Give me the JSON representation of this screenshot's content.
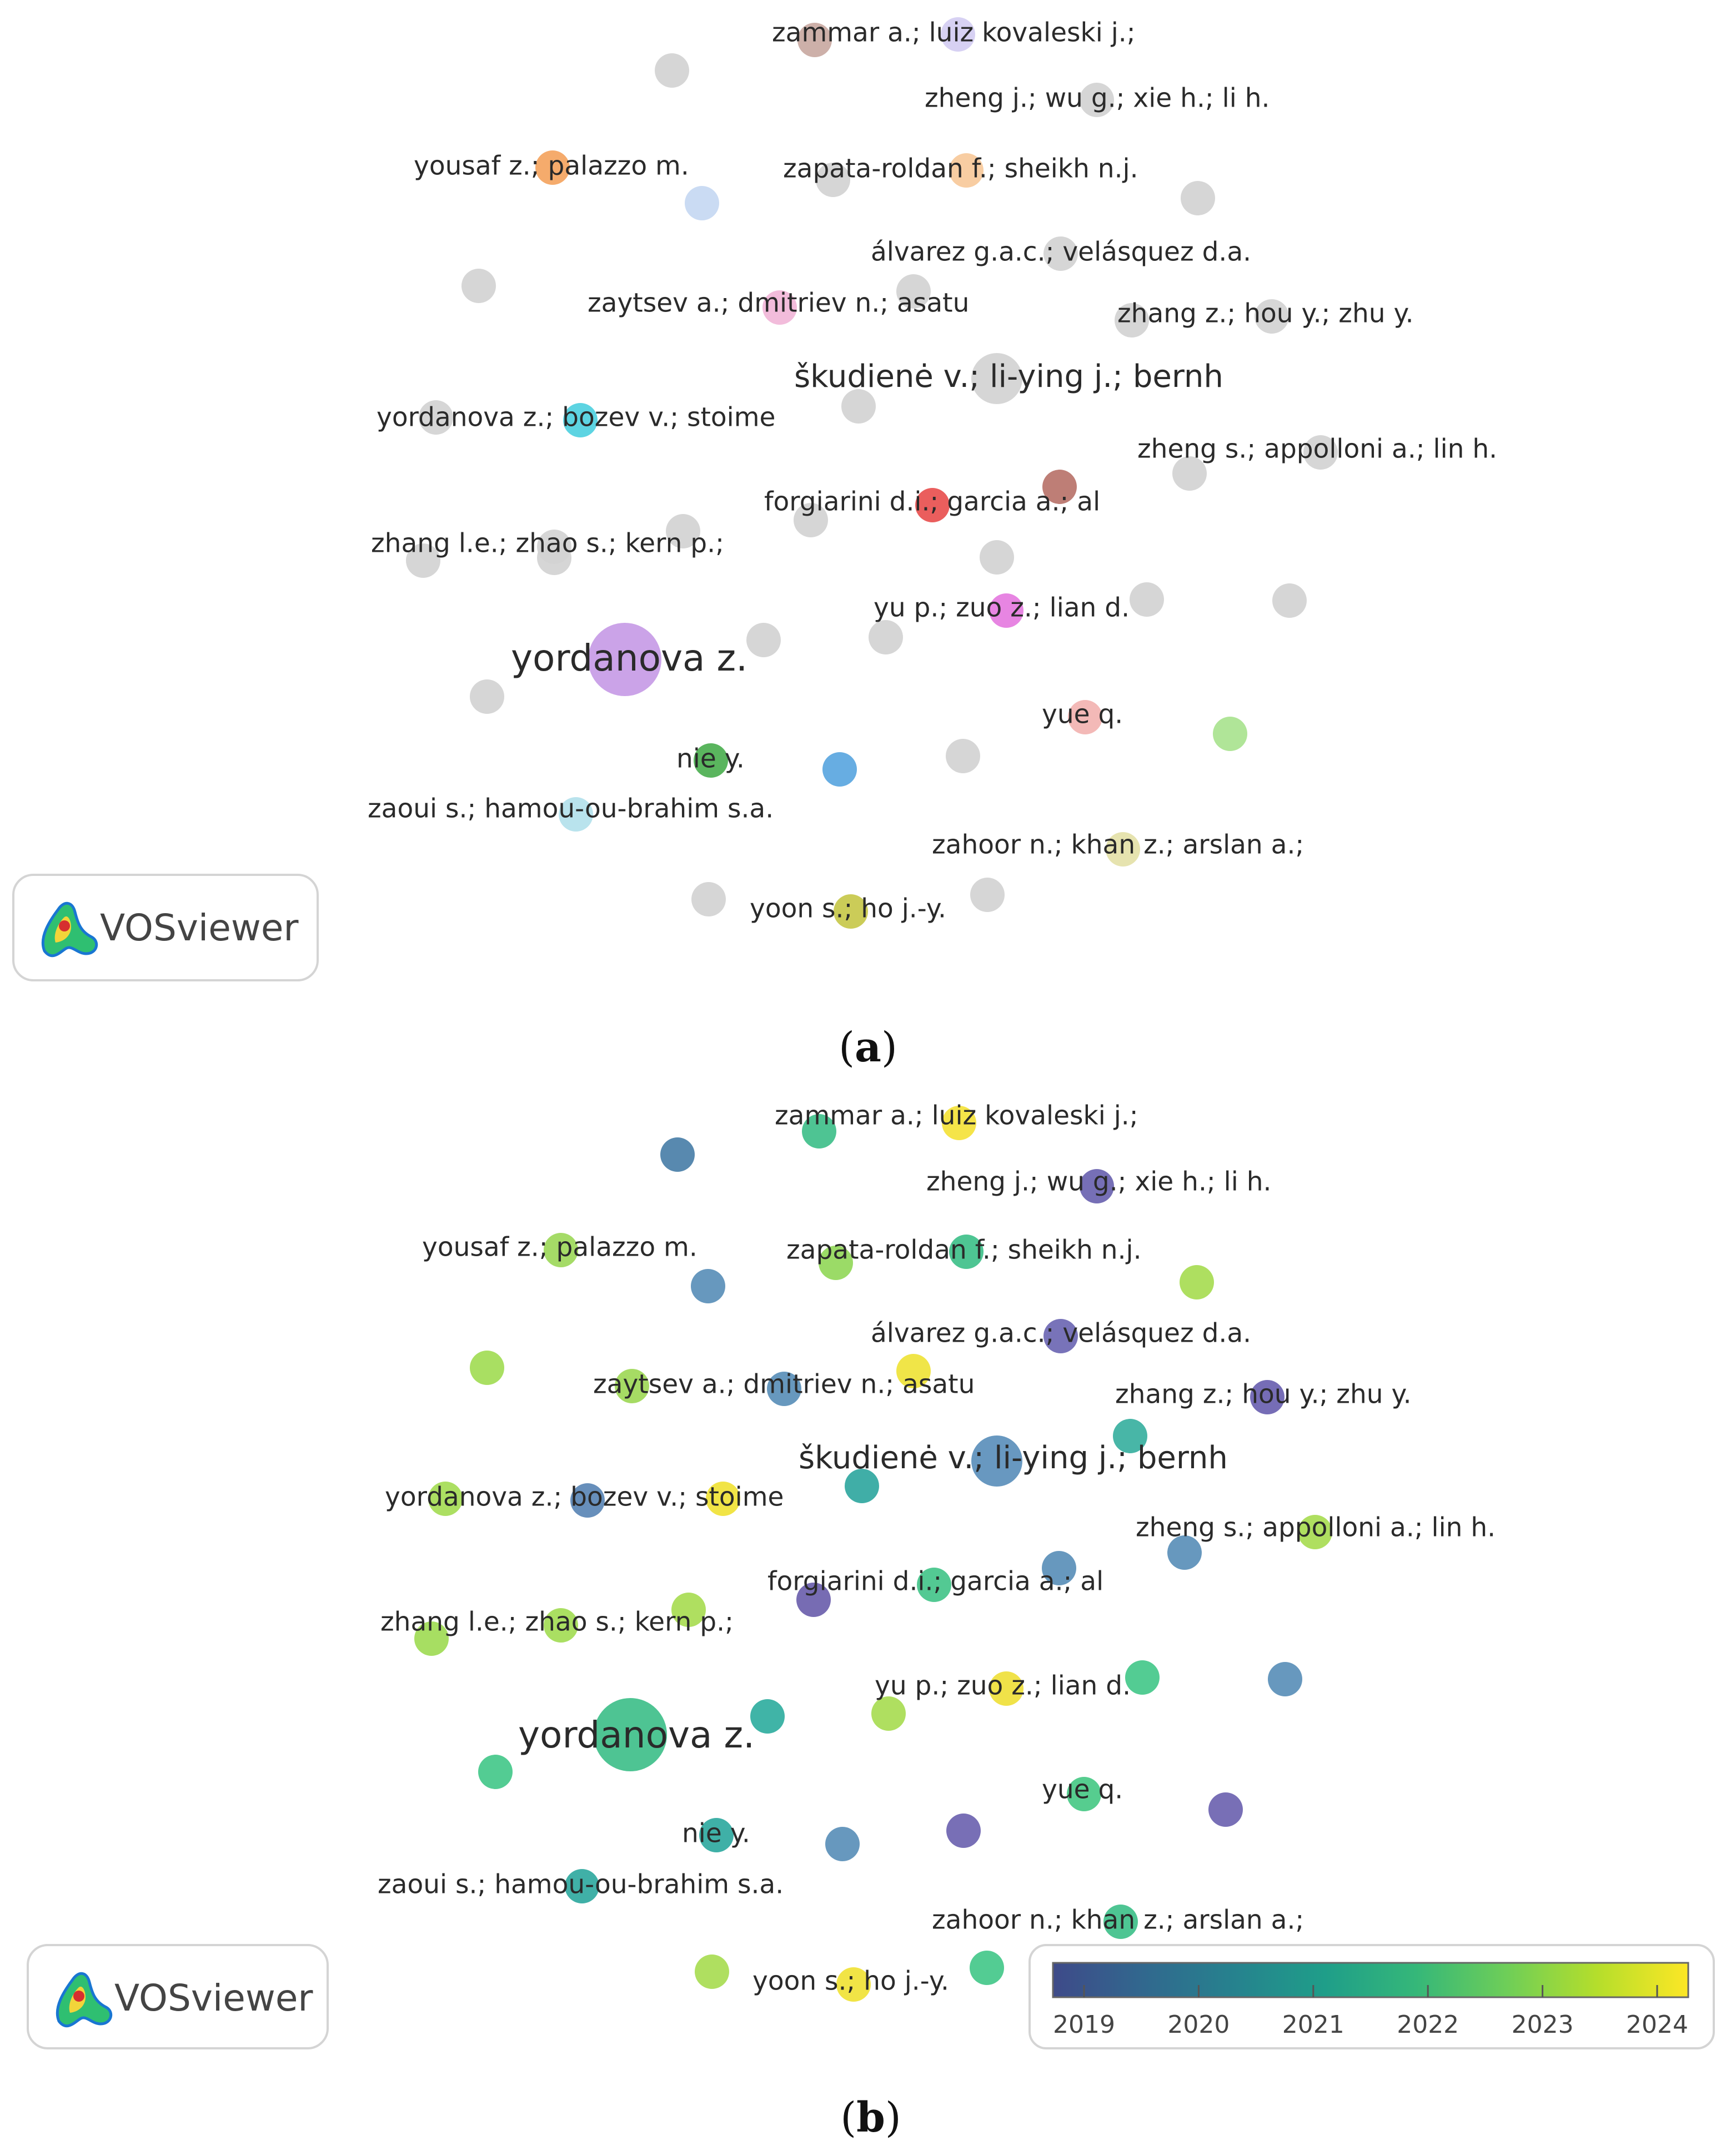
{
  "figure": {
    "logo_text": "VOSviewer",
    "panels": [
      {
        "caption_letter": "a",
        "nodes": [
          {
            "label": "zammar a.; luiz kovaleski j.;",
            "color": "#c9a9a2"
          },
          {
            "label": "",
            "color": "#d4cdf2"
          },
          {
            "label": "",
            "color": "#d3d3d3"
          },
          {
            "label": "zheng j.; wu g.; xie h.; li h.",
            "color": "#d3d3d3"
          },
          {
            "label": "yousaf z.; palazzo m.",
            "color": "#f4a460"
          },
          {
            "label": "zapata-roldan f.; sheikh n.j.",
            "color": "#d3d3d3"
          },
          {
            "label": "",
            "color": "#f7c99a"
          },
          {
            "label": "",
            "color": "#c6d8f2"
          },
          {
            "label": "",
            "color": "#d3d3d3"
          },
          {
            "label": "álvarez g.a.c.; velásquez d.a.",
            "color": "#d3d3d3"
          },
          {
            "label": "",
            "color": "#d3d3d3"
          },
          {
            "label": "zaytsev a.; dmitriev n.; asatu",
            "color": "#d3d3d3"
          },
          {
            "label": "",
            "color": "#f1b6d8"
          },
          {
            "label": "",
            "color": "#d3d3d3"
          },
          {
            "label": "zhang z.; hou y.; zhu y.",
            "color": "#d3d3d3"
          },
          {
            "label": "",
            "color": "#d3d3d3"
          },
          {
            "label": "škudienė v.; li-ying j.; bernh",
            "color": "#d3d3d3",
            "big": true
          },
          {
            "label": "",
            "color": "#d3d3d3"
          },
          {
            "label": "yordanova z.; bozev v.; stoime",
            "color": "#d3d3d3"
          },
          {
            "label": "",
            "color": "#4fd0e0"
          },
          {
            "label": "",
            "color": "#d3d3d3"
          },
          {
            "label": "zheng s.; appolloni a.; lin h.",
            "color": "#d3d3d3"
          },
          {
            "label": "",
            "color": "#b9736a"
          },
          {
            "label": "forgiarini d.i.; garcia a.; al",
            "color": "#d3d3d3"
          },
          {
            "label": "",
            "color": "#e8504f"
          },
          {
            "label": "",
            "color": "#d3d3d3"
          },
          {
            "label": "zhang l.e.; zhao s.; kern p.;",
            "color": "#d3d3d3"
          },
          {
            "label": "",
            "color": "#d3d3d3"
          },
          {
            "label": "",
            "color": "#d3d3d3"
          },
          {
            "label": "yu p.; zuo z.; lian d.",
            "color": "#e57be0"
          },
          {
            "label": "",
            "color": "#d3d3d3"
          },
          {
            "label": "",
            "color": "#d3d3d3"
          },
          {
            "label": "",
            "color": "#d3d3d3"
          },
          {
            "label": "yordanova z.",
            "color": "#c79be6",
            "huge": true
          },
          {
            "label": "",
            "color": "#d3d3d3"
          },
          {
            "label": "",
            "color": "#d3d3d3"
          },
          {
            "label": "yue q.",
            "color": "#f2b3b1"
          },
          {
            "label": "",
            "color": "#a9e38f"
          },
          {
            "label": "nie y.",
            "color": "#4caf50"
          },
          {
            "label": "",
            "color": "#5aa6e0"
          },
          {
            "label": "",
            "color": "#d3d3d3"
          },
          {
            "label": "zaoui s.; hamou-ou-brahim s.a.",
            "color": "#b3e1ec"
          },
          {
            "label": "zahoor n.; khan z.; arslan a.;",
            "color": "#e4e1a8"
          },
          {
            "label": "",
            "color": "#d3d3d3"
          },
          {
            "label": "yoon s.; ho j.-y.",
            "color": "#c7c84a"
          },
          {
            "label": "",
            "color": "#d3d3d3"
          }
        ]
      },
      {
        "caption_letter": "b",
        "nodes": [
          {
            "label": "zammar a.; luiz kovaleski j.;",
            "color": "#3fbf8a"
          },
          {
            "label": "",
            "color": "#f4e23a"
          },
          {
            "label": "",
            "color": "#4a7fa8"
          },
          {
            "label": "zheng j.; wu g.; xie h.; li h.",
            "color": "#6a63b0"
          },
          {
            "label": "yousaf z.; palazzo m.",
            "color": "#9dd85a"
          },
          {
            "label": "zapata-roldan f.; sheikh n.j.",
            "color": "#93d85a"
          },
          {
            "label": "",
            "color": "#3fc08a"
          },
          {
            "label": "",
            "color": "#5a8fb8"
          },
          {
            "label": "",
            "color": "#a7dc52"
          },
          {
            "label": "álvarez g.a.c.; velásquez d.a.",
            "color": "#6d67b3"
          },
          {
            "label": "",
            "color": "#a2dc55"
          },
          {
            "label": "zaytsev a.; dmitriev n.; asatu",
            "color": "#efe338"
          },
          {
            "label": "",
            "color": "#5a8fb8"
          },
          {
            "label": "",
            "color": "#9ed857"
          },
          {
            "label": "zhang z.; hou y.; zhu y.",
            "color": "#6a61b0"
          },
          {
            "label": "",
            "color": "#38b0a0"
          },
          {
            "label": "škudienė v.; li-ying j.; bernh",
            "color": "#5b8fbb",
            "big": true
          },
          {
            "label": "",
            "color": "#30a79f"
          },
          {
            "label": "yordanova z.; bozev v.; stoime",
            "color": "#a5dc55"
          },
          {
            "label": "",
            "color": "#5a86b5"
          },
          {
            "label": "",
            "color": "#f0e236"
          },
          {
            "label": "zheng s.; appolloni a.; lin h.",
            "color": "#a8dc52"
          },
          {
            "label": "",
            "color": "#5a8fb8"
          },
          {
            "label": "forgiarini d.i.; garcia a.; al",
            "color": "#6b60ad"
          },
          {
            "label": "",
            "color": "#44c48a"
          },
          {
            "label": "",
            "color": "#5a8fb8"
          },
          {
            "label": "zhang l.e.; zhao s.; kern p.;",
            "color": "#a3dc55"
          },
          {
            "label": "",
            "color": "#9fdb55"
          },
          {
            "label": "",
            "color": "#a8dc52"
          },
          {
            "label": "yu p.; zuo z.; lian d.",
            "color": "#efe03a"
          },
          {
            "label": "",
            "color": "#44c88a"
          },
          {
            "label": "",
            "color": "#5a8fb8"
          },
          {
            "label": "",
            "color": "#a8dc52"
          },
          {
            "label": "yordanova z.",
            "color": "#3fbf8a",
            "huge": true
          },
          {
            "label": "",
            "color": "#30aea0"
          },
          {
            "label": "",
            "color": "#44c88a"
          },
          {
            "label": "yue q.",
            "color": "#48c986"
          },
          {
            "label": "",
            "color": "#6d63b0"
          },
          {
            "label": "nie y.",
            "color": "#2fa9a0"
          },
          {
            "label": "",
            "color": "#5a8fb8"
          },
          {
            "label": "",
            "color": "#6d63b0"
          },
          {
            "label": "zaoui s.; hamou-ou-brahim s.a.",
            "color": "#30a9a0"
          },
          {
            "label": "zahoor n.; khan z.; arslan a.;",
            "color": "#3fc08a"
          },
          {
            "label": "",
            "color": "#a8dc52"
          },
          {
            "label": "yoon s.; ho j.-y.",
            "color": "#f0e236"
          },
          {
            "label": "",
            "color": "#44c88a"
          }
        ],
        "color_scale": {
          "ticks": [
            "2019",
            "2020",
            "2021",
            "2022",
            "2023",
            "2024"
          ],
          "colors": [
            "#3e4a89",
            "#31688e",
            "#26828e",
            "#1f9e89",
            "#35b779",
            "#6ece58",
            "#b5de2b",
            "#fde725"
          ]
        }
      }
    ]
  }
}
